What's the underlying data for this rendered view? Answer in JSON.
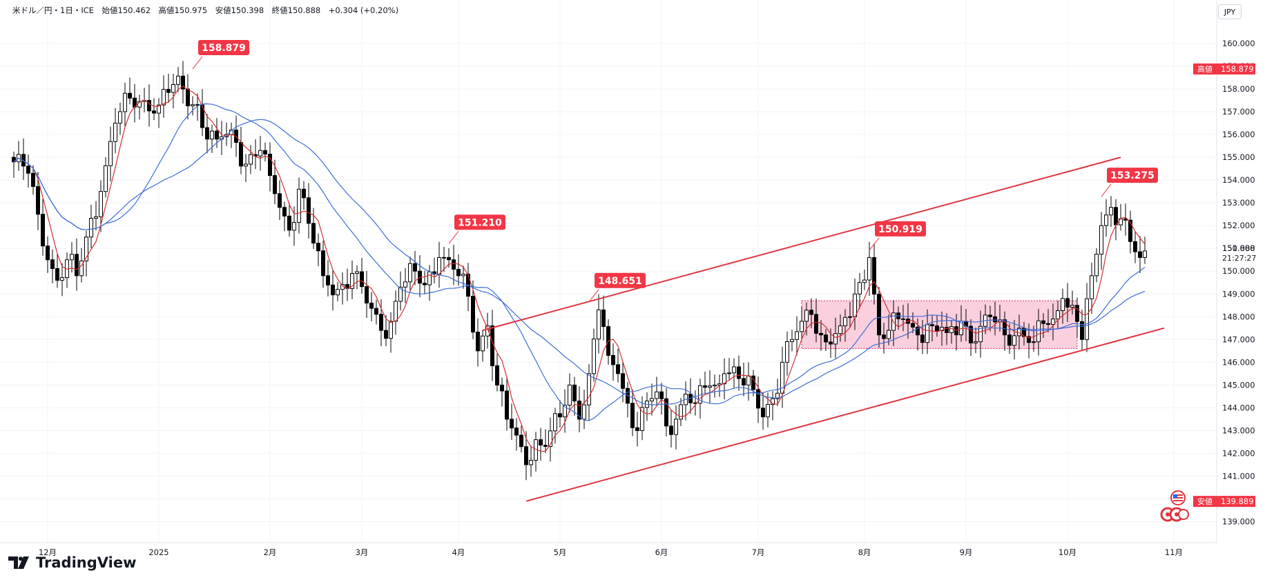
{
  "header": {
    "text": "米ドル／円・1日・ICE　始値150.462　高値150.975　安値150.398　終値150.888　+0.304 (+0.20%)"
  },
  "currency_button": "JPY",
  "brand": {
    "name": "TradingView"
  },
  "icons": [
    "tradingview-logo-icon",
    "us-flag-icon",
    "events-icon"
  ],
  "colors": {
    "up": "#ffffff",
    "down": "#000000",
    "candle_border": "#000000",
    "ma_short": "#d32f2f",
    "ma_mid": "#3d6dd6",
    "ma_long": "#3d6dd6",
    "trendline": "#e0323c",
    "label_bg": "#f23645",
    "box_fill": "#f8bbd0",
    "box_border": "#e91e63"
  },
  "price_axis": {
    "ticks": [
      "160.000",
      "159.000",
      "158.000",
      "157.000",
      "156.000",
      "155.000",
      "154.000",
      "153.000",
      "152.000",
      "151.000",
      "150.000",
      "149.000",
      "148.000",
      "147.000",
      "146.000",
      "145.000",
      "144.000",
      "143.000",
      "142.000",
      "141.000",
      "140.000",
      "139.000"
    ],
    "high_label": "高値",
    "high_value": "158.879",
    "low_label": "安値",
    "low_value": "139.889",
    "last_price": "150.888",
    "countdown": "21:27:27"
  },
  "time_axis": {
    "ticks": [
      {
        "label": "12月",
        "idx": 7
      },
      {
        "label": "2025",
        "idx": 30
      },
      {
        "label": "2月",
        "idx": 53
      },
      {
        "label": "3月",
        "idx": 72
      },
      {
        "label": "4月",
        "idx": 92
      },
      {
        "label": "5月",
        "idx": 113
      },
      {
        "label": "6月",
        "idx": 134
      },
      {
        "label": "7月",
        "idx": 154
      },
      {
        "label": "8月",
        "idx": 176
      },
      {
        "label": "9月",
        "idx": 197
      },
      {
        "label": "10月",
        "idx": 218
      },
      {
        "label": "11月",
        "idx": 240
      }
    ]
  },
  "annotations": [
    {
      "text": "158.879",
      "idx": 37,
      "price": 158.879
    },
    {
      "text": "151.210",
      "idx": 90,
      "price": 151.21
    },
    {
      "text": "148.651",
      "idx": 119,
      "price": 148.651
    },
    {
      "text": "150.919",
      "idx": 177,
      "price": 150.919
    },
    {
      "text": "153.275",
      "idx": 225,
      "price": 153.275
    }
  ],
  "chart_data": {
    "type": "candlestick",
    "title": "米ドル／円・1日・ICE",
    "ylim": [
      138.5,
      161.0
    ],
    "last_close": 150.888,
    "high": 158.879,
    "low": 139.889,
    "channel": {
      "upper": [
        {
          "idx": 97,
          "price": 147.4
        },
        {
          "idx": 229,
          "price": 155.0
        }
      ],
      "lower": [
        {
          "idx": 106,
          "price": 139.9
        },
        {
          "idx": 238,
          "price": 147.5
        }
      ]
    },
    "range_box": {
      "from_idx": 163,
      "to_idx": 220,
      "top": 148.7,
      "bottom": 146.6
    },
    "anchors": [
      {
        "idx": 0,
        "price": 154.8
      },
      {
        "idx": 3,
        "price": 154.3
      },
      {
        "idx": 5,
        "price": 152.5
      },
      {
        "idx": 7,
        "price": 150.5
      },
      {
        "idx": 9,
        "price": 149.6
      },
      {
        "idx": 11,
        "price": 150.5
      },
      {
        "idx": 13,
        "price": 149.8
      },
      {
        "idx": 15,
        "price": 151.5
      },
      {
        "idx": 18,
        "price": 153.5
      },
      {
        "idx": 21,
        "price": 156.5
      },
      {
        "idx": 24,
        "price": 157.6
      },
      {
        "idx": 27,
        "price": 157.5
      },
      {
        "idx": 30,
        "price": 157.3
      },
      {
        "idx": 33,
        "price": 158.2
      },
      {
        "idx": 35,
        "price": 158.0
      },
      {
        "idx": 38,
        "price": 157.3
      },
      {
        "idx": 40,
        "price": 155.8
      },
      {
        "idx": 42,
        "price": 155.8
      },
      {
        "idx": 45,
        "price": 156.2
      },
      {
        "idx": 48,
        "price": 154.7
      },
      {
        "idx": 51,
        "price": 155.3
      },
      {
        "idx": 53,
        "price": 154.2
      },
      {
        "idx": 55,
        "price": 152.8
      },
      {
        "idx": 57,
        "price": 151.8
      },
      {
        "idx": 59,
        "price": 153.6
      },
      {
        "idx": 61,
        "price": 152.1
      },
      {
        "idx": 64,
        "price": 149.8
      },
      {
        "idx": 67,
        "price": 149.2
      },
      {
        "idx": 70,
        "price": 149.9
      },
      {
        "idx": 73,
        "price": 148.6
      },
      {
        "idx": 76,
        "price": 147.4
      },
      {
        "idx": 78,
        "price": 147.8
      },
      {
        "idx": 80,
        "price": 149.3
      },
      {
        "idx": 83,
        "price": 150.0
      },
      {
        "idx": 85,
        "price": 149.4
      },
      {
        "idx": 88,
        "price": 150.6
      },
      {
        "idx": 90,
        "price": 150.5
      },
      {
        "idx": 92,
        "price": 149.8
      },
      {
        "idx": 94,
        "price": 148.9
      },
      {
        "idx": 96,
        "price": 146.5
      },
      {
        "idx": 98,
        "price": 147.6
      },
      {
        "idx": 100,
        "price": 145.0
      },
      {
        "idx": 102,
        "price": 143.5
      },
      {
        "idx": 104,
        "price": 142.8
      },
      {
        "idx": 106,
        "price": 141.5
      },
      {
        "idx": 108,
        "price": 142.6
      },
      {
        "idx": 110,
        "price": 142.3
      },
      {
        "idx": 113,
        "price": 143.6
      },
      {
        "idx": 115,
        "price": 145.0
      },
      {
        "idx": 117,
        "price": 143.5
      },
      {
        "idx": 119,
        "price": 145.5
      },
      {
        "idx": 121,
        "price": 148.3
      },
      {
        "idx": 123,
        "price": 146.3
      },
      {
        "idx": 125,
        "price": 145.5
      },
      {
        "idx": 127,
        "price": 144.2
      },
      {
        "idx": 129,
        "price": 143.0
      },
      {
        "idx": 131,
        "price": 144.3
      },
      {
        "idx": 133,
        "price": 144.7
      },
      {
        "idx": 135,
        "price": 143.2
      },
      {
        "idx": 137,
        "price": 143.5
      },
      {
        "idx": 139,
        "price": 144.6
      },
      {
        "idx": 141,
        "price": 144.2
      },
      {
        "idx": 143,
        "price": 144.9
      },
      {
        "idx": 145,
        "price": 145.0
      },
      {
        "idx": 147,
        "price": 145.5
      },
      {
        "idx": 149,
        "price": 145.8
      },
      {
        "idx": 151,
        "price": 145.0
      },
      {
        "idx": 153,
        "price": 144.8
      },
      {
        "idx": 155,
        "price": 143.6
      },
      {
        "idx": 157,
        "price": 144.4
      },
      {
        "idx": 159,
        "price": 146.0
      },
      {
        "idx": 161,
        "price": 147.0
      },
      {
        "idx": 163,
        "price": 147.8
      },
      {
        "idx": 165,
        "price": 148.1
      },
      {
        "idx": 167,
        "price": 147.2
      },
      {
        "idx": 169,
        "price": 146.8
      },
      {
        "idx": 171,
        "price": 147.6
      },
      {
        "idx": 173,
        "price": 148.0
      },
      {
        "idx": 175,
        "price": 149.5
      },
      {
        "idx": 177,
        "price": 150.6
      },
      {
        "idx": 179,
        "price": 147.2
      },
      {
        "idx": 181,
        "price": 147.4
      },
      {
        "idx": 184,
        "price": 147.9
      },
      {
        "idx": 187,
        "price": 147.2
      },
      {
        "idx": 190,
        "price": 147.6
      },
      {
        "idx": 193,
        "price": 147.3
      },
      {
        "idx": 196,
        "price": 147.8
      },
      {
        "idx": 199,
        "price": 146.9
      },
      {
        "idx": 202,
        "price": 148.0
      },
      {
        "idx": 205,
        "price": 147.2
      },
      {
        "idx": 208,
        "price": 147.5
      },
      {
        "idx": 211,
        "price": 146.9
      },
      {
        "idx": 213,
        "price": 147.7
      },
      {
        "idx": 215,
        "price": 147.9
      },
      {
        "idx": 217,
        "price": 148.8
      },
      {
        "idx": 219,
        "price": 148.5
      },
      {
        "idx": 221,
        "price": 147.0
      },
      {
        "idx": 223,
        "price": 149.8
      },
      {
        "idx": 225,
        "price": 152.0
      },
      {
        "idx": 227,
        "price": 152.8
      },
      {
        "idx": 229,
        "price": 152.3
      },
      {
        "idx": 231,
        "price": 151.3
      },
      {
        "idx": 233,
        "price": 150.6
      },
      {
        "idx": 234,
        "price": 150.888
      }
    ]
  }
}
